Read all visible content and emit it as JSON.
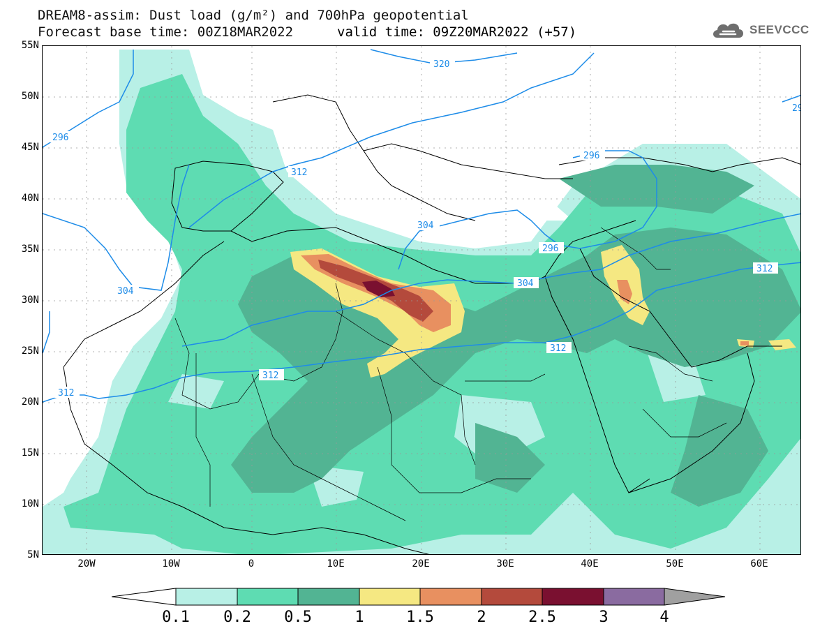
{
  "header": {
    "title_line1": "DREAM8-assim: Dust load (g/m²) and 700hPa geopotential",
    "title_line2": "Forecast base time: 00Z18MAR2022",
    "valid_time": "valid time: 09Z20MAR2022 (+57)",
    "logo_text": "SEEVCCC",
    "logo_icon": "cloud-icon"
  },
  "map": {
    "lat_ticks": [
      "55N",
      "50N",
      "45N",
      "40N",
      "35N",
      "30N",
      "25N",
      "20N",
      "15N",
      "10N",
      "5N"
    ],
    "lon_ticks": [
      "20W",
      "10W",
      "0",
      "10E",
      "20E",
      "30E",
      "40E",
      "50E",
      "60E"
    ],
    "contour_labels": [
      "320",
      "296",
      "312",
      "304",
      "296",
      "304",
      "312",
      "312",
      "312",
      "312",
      "304",
      "296",
      "29"
    ],
    "colors": {
      "ocean": "#ffffff",
      "level_0_1": "#b8f0e6",
      "level_0_2": "#5edcb2",
      "level_0_5": "#52b493",
      "level_1": "#f5e882",
      "level_1_5": "#e89060",
      "level_2": "#b44a3c",
      "level_2_5": "#7a1030",
      "level_3": "#8a6ba0",
      "level_4": "#a0a0a0",
      "contour": "#1e8ce8",
      "border": "#000000"
    }
  },
  "colorbar": {
    "labels": [
      "0.1",
      "0.2",
      "0.5",
      "1",
      "1.5",
      "2",
      "2.5",
      "3",
      "4"
    ],
    "colors": [
      "#b8f0e6",
      "#5edcb2",
      "#52b493",
      "#f5e882",
      "#e89060",
      "#b44a3c",
      "#7a1030",
      "#8a6ba0"
    ],
    "end_low_color": "#ffffff",
    "end_high_color": "#a0a0a0"
  }
}
